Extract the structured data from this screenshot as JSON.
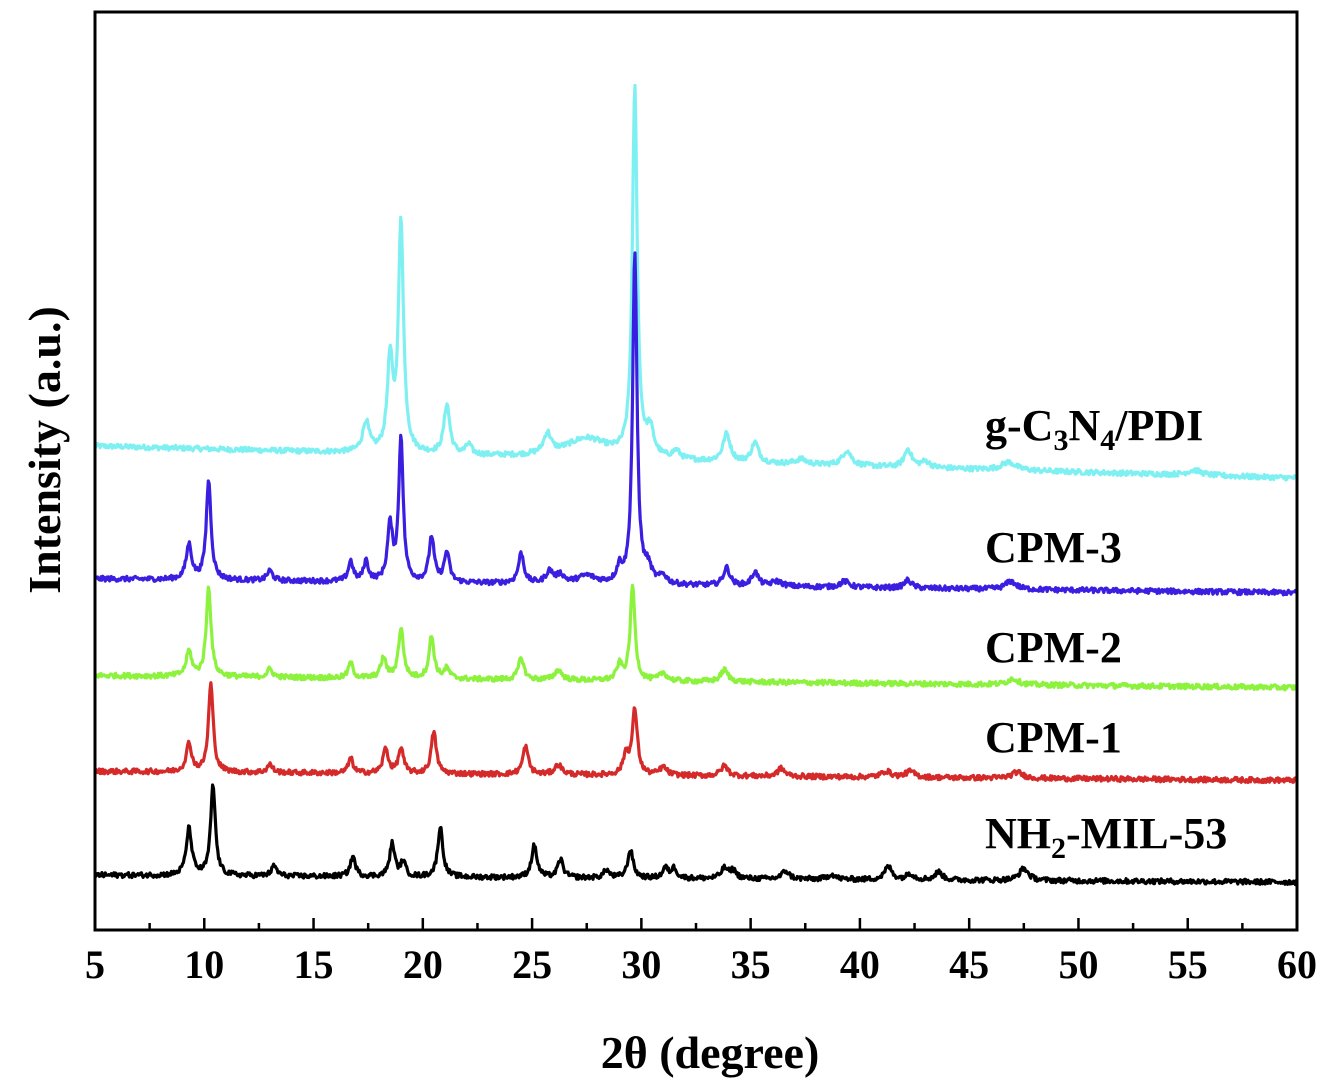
{
  "chart_data": {
    "type": "line",
    "title": "",
    "xlabel": "2θ (degree)",
    "ylabel": "Intensity (a.u.)",
    "xlim": [
      5,
      60
    ],
    "ylim": [
      0,
      920
    ],
    "xticks": [
      5,
      10,
      15,
      20,
      25,
      30,
      35,
      40,
      45,
      50,
      55,
      60
    ],
    "grid": false,
    "legend": "inline labels at right of each trace",
    "series": [
      {
        "name": "g-C3N4/PDI",
        "label_parts": [
          {
            "t": "g-C"
          },
          {
            "t": "3",
            "sub": true
          },
          {
            "t": "N"
          },
          {
            "t": "4",
            "sub": true
          },
          {
            "t": "/PDI"
          }
        ],
        "color": "#7FF0F2",
        "baseline": [
          485,
          453
        ],
        "peaks": [
          [
            17.4,
            30,
            0.18
          ],
          [
            18.5,
            90,
            0.15
          ],
          [
            19.0,
            230,
            0.14
          ],
          [
            21.1,
            50,
            0.16
          ],
          [
            22.1,
            10,
            0.15
          ],
          [
            25.7,
            20,
            0.2
          ],
          [
            27.5,
            20,
            1.2
          ],
          [
            29.7,
            370,
            0.13
          ],
          [
            30.4,
            25,
            0.2
          ],
          [
            31.6,
            8,
            0.2
          ],
          [
            33.9,
            28,
            0.2
          ],
          [
            35.2,
            20,
            0.2
          ],
          [
            37.3,
            5,
            0.3
          ],
          [
            39.4,
            15,
            0.25
          ],
          [
            42.2,
            18,
            0.2
          ],
          [
            43.0,
            6,
            0.25
          ],
          [
            46.8,
            8,
            0.4
          ],
          [
            55.3,
            5,
            0.4
          ]
        ]
      },
      {
        "name": "CPM-3",
        "label_parts": [
          {
            "t": "CPM-3"
          }
        ],
        "color": "#3A1FE0",
        "baseline": [
          352,
          338
        ],
        "peaks": [
          [
            9.3,
            35,
            0.15
          ],
          [
            10.2,
            100,
            0.13
          ],
          [
            13.0,
            10,
            0.15
          ],
          [
            16.7,
            20,
            0.13
          ],
          [
            17.4,
            20,
            0.13
          ],
          [
            18.5,
            55,
            0.14
          ],
          [
            19.0,
            145,
            0.12
          ],
          [
            20.4,
            45,
            0.14
          ],
          [
            21.1,
            30,
            0.14
          ],
          [
            24.5,
            30,
            0.15
          ],
          [
            25.8,
            12,
            0.2
          ],
          [
            26.3,
            8,
            0.2
          ],
          [
            27.5,
            8,
            0.5
          ],
          [
            29.0,
            15,
            0.15
          ],
          [
            29.7,
            330,
            0.12
          ],
          [
            30.3,
            15,
            0.2
          ],
          [
            31.0,
            8,
            0.2
          ],
          [
            33.9,
            18,
            0.18
          ],
          [
            35.2,
            14,
            0.18
          ],
          [
            36.2,
            5,
            0.3
          ],
          [
            39.3,
            6,
            0.25
          ],
          [
            42.2,
            8,
            0.2
          ],
          [
            46.9,
            8,
            0.3
          ]
        ]
      },
      {
        "name": "CPM-2",
        "label_parts": [
          {
            "t": "CPM-2"
          }
        ],
        "color": "#8CF23E",
        "baseline": [
          255,
          243
        ],
        "peaks": [
          [
            9.3,
            25,
            0.15
          ],
          [
            10.2,
            90,
            0.13
          ],
          [
            13.0,
            8,
            0.15
          ],
          [
            16.7,
            15,
            0.13
          ],
          [
            18.2,
            20,
            0.15
          ],
          [
            19.0,
            50,
            0.14
          ],
          [
            20.4,
            42,
            0.14
          ],
          [
            21.1,
            10,
            0.15
          ],
          [
            24.5,
            22,
            0.15
          ],
          [
            26.2,
            10,
            0.2
          ],
          [
            29.0,
            15,
            0.15
          ],
          [
            29.6,
            95,
            0.13
          ],
          [
            31.0,
            8,
            0.2
          ],
          [
            33.8,
            12,
            0.2
          ],
          [
            47.0,
            6,
            0.3
          ]
        ]
      },
      {
        "name": "CPM-1",
        "label_parts": [
          {
            "t": "CPM-1"
          }
        ],
        "color": "#D42A2A",
        "baseline": [
          159,
          150
        ],
        "peaks": [
          [
            9.3,
            28,
            0.15
          ],
          [
            10.3,
            88,
            0.13
          ],
          [
            13.0,
            8,
            0.15
          ],
          [
            16.7,
            15,
            0.13
          ],
          [
            18.3,
            25,
            0.14
          ],
          [
            19.0,
            25,
            0.14
          ],
          [
            20.5,
            42,
            0.14
          ],
          [
            24.7,
            28,
            0.15
          ],
          [
            26.2,
            10,
            0.2
          ],
          [
            29.3,
            20,
            0.15
          ],
          [
            29.7,
            65,
            0.14
          ],
          [
            31.0,
            8,
            0.2
          ],
          [
            33.8,
            10,
            0.2
          ],
          [
            36.4,
            8,
            0.2
          ],
          [
            41.2,
            6,
            0.25
          ],
          [
            42.3,
            6,
            0.25
          ],
          [
            47.2,
            6,
            0.3
          ]
        ]
      },
      {
        "name": "NH2-MIL-53",
        "label_parts": [
          {
            "t": "NH"
          },
          {
            "t": "2",
            "sub": true
          },
          {
            "t": "-MIL-53"
          }
        ],
        "color": "#000000",
        "baseline": [
          55,
          48
        ],
        "peaks": [
          [
            9.3,
            47,
            0.15
          ],
          [
            10.4,
            90,
            0.13
          ],
          [
            13.2,
            10,
            0.15
          ],
          [
            16.8,
            20,
            0.14
          ],
          [
            18.6,
            33,
            0.14
          ],
          [
            19.1,
            15,
            0.13
          ],
          [
            20.8,
            50,
            0.14
          ],
          [
            25.1,
            32,
            0.15
          ],
          [
            26.3,
            18,
            0.15
          ],
          [
            28.4,
            8,
            0.15
          ],
          [
            29.5,
            28,
            0.15
          ],
          [
            31.1,
            10,
            0.15
          ],
          [
            31.5,
            10,
            0.15
          ],
          [
            33.8,
            10,
            0.18
          ],
          [
            34.2,
            8,
            0.18
          ],
          [
            36.6,
            8,
            0.2
          ],
          [
            38.7,
            5,
            0.2
          ],
          [
            41.3,
            13,
            0.2
          ],
          [
            42.3,
            6,
            0.2
          ],
          [
            43.6,
            8,
            0.2
          ],
          [
            47.5,
            12,
            0.25
          ]
        ]
      }
    ]
  }
}
